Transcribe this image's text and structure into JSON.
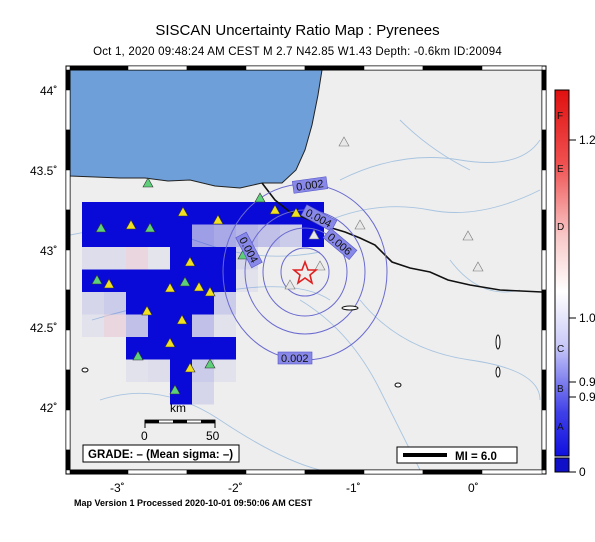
{
  "title": "SISCAN Uncertainty Ratio Map : Pyrenees",
  "subtitle": "Oct  1, 2020 09:48:24 AM CEST   M 2.7   N42.85 W1.43   Depth: -0.6km   ID:20094",
  "footer": "Map Version 1 Processed 2020-10-01 09:50:06 AM CEST",
  "lat_labels": [
    "44˚",
    "43.5˚",
    "43˚",
    "42.5˚",
    "42˚"
  ],
  "lon_labels": [
    "-3˚",
    "-2˚",
    "-1˚",
    "0˚"
  ],
  "contours": [
    "0.002",
    "0.004",
    "0.006",
    "0.004",
    "0.002"
  ],
  "scale": {
    "label": "km",
    "start": "0",
    "end": "50"
  },
  "grade_box": "GRADE: – (Mean sigma: –)",
  "mi_box": "MI = 6.0",
  "colorbar": {
    "letters": [
      "F",
      "E",
      "D",
      "C",
      "B",
      "A"
    ],
    "values": [
      "1.2",
      "1.0",
      "0.9",
      "0.9",
      "0"
    ]
  },
  "colors": {
    "sea": "#6e9fd9",
    "land": "#eeeeee",
    "cell_blue": "#0a0ad8",
    "contour": "#6a6ad0",
    "label_bg": "#8888e8",
    "epicenter": "#e02020",
    "station_green": "#5ed07a",
    "station_yellow": "#f0e020"
  }
}
